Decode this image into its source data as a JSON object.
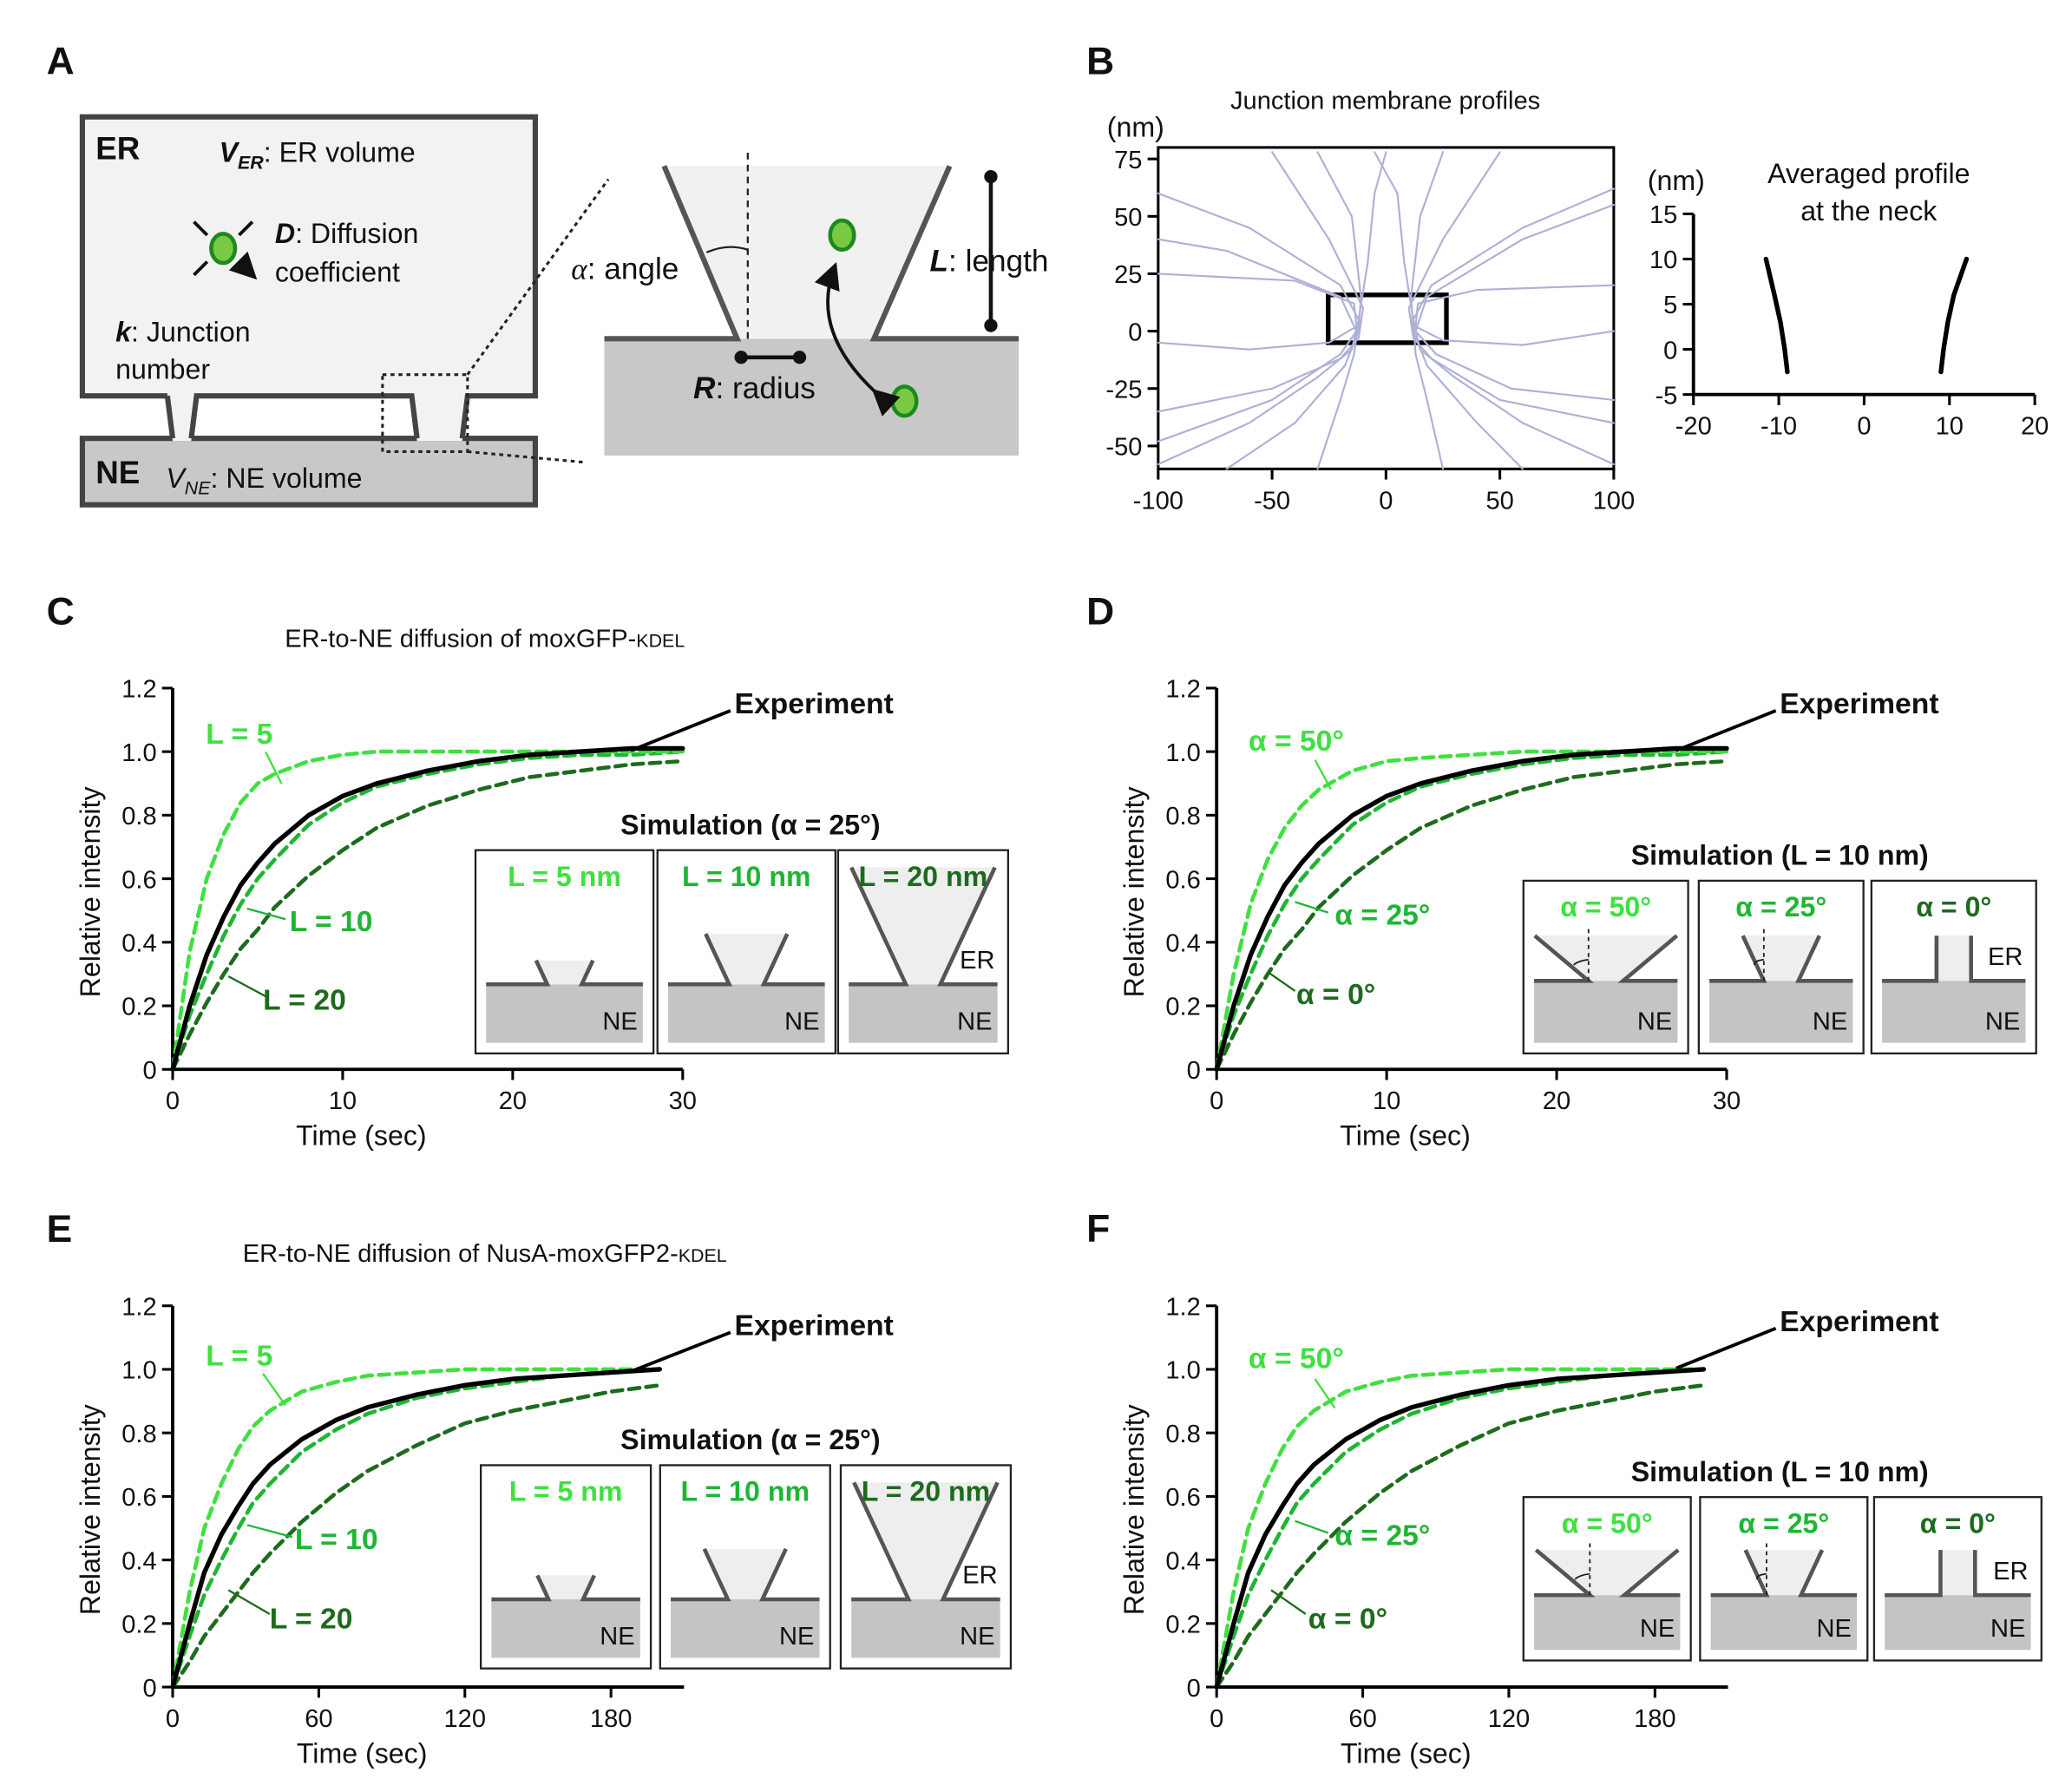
{
  "panel_labels": [
    "A",
    "B",
    "C",
    "D",
    "E",
    "F"
  ],
  "diagram_a": {
    "er_label": "ER",
    "ne_label": "NE",
    "v_er": {
      "symbol": "V",
      "sub": "ER",
      "text": ": ER volume"
    },
    "d": {
      "symbol": "D",
      "text": ": Diffusion",
      "text2": "coefficient"
    },
    "k": {
      "symbol": "k",
      "text": ": Junction",
      "text2": "number"
    },
    "v_ne": {
      "symbol": "V",
      "sub": "NE",
      "text": ": NE volume"
    },
    "angle": {
      "symbol": "α",
      "text": ": angle"
    },
    "length": {
      "symbol": "L",
      "text": ": length"
    },
    "radius": {
      "symbol": "R",
      "text": ": radius"
    }
  },
  "chart_data": [
    {
      "type": "line",
      "title": "Junction membrane profiles",
      "unit": "(nm)",
      "color": "#aeb0d6",
      "frame": true,
      "xlim": [
        -100,
        100
      ],
      "ylim": [
        -60,
        80
      ],
      "xticks": [
        -100,
        -50,
        0,
        50,
        100
      ],
      "yticks": [
        -50,
        -25,
        0,
        25,
        50,
        75
      ],
      "series": [
        {
          "x": [
            -100,
            -60,
            -30,
            -15,
            -12,
            -20,
            -60,
            -100
          ],
          "values": [
            -58,
            -40,
            -20,
            -8,
            5,
            20,
            45,
            60
          ]
        },
        {
          "x": [
            -100,
            -50,
            -20,
            -12,
            -10,
            -25,
            -50
          ],
          "values": [
            -35,
            -25,
            -12,
            -3,
            10,
            40,
            78
          ]
        },
        {
          "x": [
            -70,
            -40,
            -18,
            -12,
            -11,
            -15,
            -30
          ],
          "values": [
            -60,
            -40,
            -15,
            0,
            15,
            50,
            78
          ]
        },
        {
          "x": [
            -100,
            -60,
            -25,
            -13,
            -14,
            -40,
            -100
          ],
          "values": [
            -5,
            -8,
            -5,
            2,
            12,
            22,
            25
          ]
        },
        {
          "x": [
            -30,
            -20,
            -14,
            -12,
            -8,
            -5,
            0
          ],
          "values": [
            -60,
            -30,
            -10,
            5,
            30,
            60,
            78
          ]
        },
        {
          "x": [
            -100,
            -50,
            -20,
            -13,
            -20,
            -70,
            -100
          ],
          "values": [
            -48,
            -30,
            -10,
            0,
            15,
            35,
            40
          ]
        },
        {
          "x": [
            100,
            60,
            30,
            15,
            12,
            20,
            60,
            100
          ],
          "values": [
            -58,
            -40,
            -20,
            -8,
            5,
            20,
            45,
            62
          ]
        },
        {
          "x": [
            100,
            50,
            20,
            12,
            10,
            25,
            50
          ],
          "values": [
            -40,
            -30,
            -12,
            -3,
            10,
            40,
            78
          ]
        },
        {
          "x": [
            60,
            40,
            18,
            12,
            11,
            15,
            25
          ],
          "values": [
            -60,
            -40,
            -15,
            0,
            15,
            50,
            78
          ]
        },
        {
          "x": [
            100,
            60,
            25,
            13,
            14,
            40,
            100
          ],
          "values": [
            0,
            -6,
            -4,
            2,
            12,
            18,
            20
          ]
        },
        {
          "x": [
            25,
            18,
            13,
            12,
            8,
            5,
            -5
          ],
          "values": [
            -60,
            -30,
            -10,
            5,
            30,
            60,
            78
          ]
        },
        {
          "x": [
            100,
            55,
            22,
            13,
            18,
            60,
            100
          ],
          "values": [
            -30,
            -25,
            -10,
            0,
            15,
            40,
            55
          ]
        }
      ]
    },
    {
      "type": "line",
      "title": [
        "Averaged profile",
        "at the neck"
      ],
      "unit": "(nm)",
      "color": "#000000",
      "xlim": [
        -20,
        20
      ],
      "ylim": [
        -5,
        15
      ],
      "xticks": [
        -20,
        -10,
        0,
        10,
        20
      ],
      "yticks": [
        -5,
        0,
        5,
        10,
        15
      ],
      "series": [
        {
          "x": [
            -9,
            -9.3,
            -9.8,
            -10.5,
            -11.5
          ],
          "values": [
            -2.5,
            0,
            3,
            6,
            10
          ]
        },
        {
          "x": [
            9,
            9.3,
            9.8,
            10.5,
            12
          ],
          "values": [
            -2.5,
            0,
            3,
            6,
            10
          ]
        }
      ]
    },
    {
      "type": "line",
      "title": "ER-to-NE diffusion of moxGFP-",
      "title_suffix": "KDEL",
      "xlabel": "Time (sec)",
      "ylabel": "Relative intensity",
      "xlim": [
        0,
        30
      ],
      "ylim": [
        0,
        1.2
      ],
      "xticks": [
        0,
        10,
        20,
        30
      ],
      "yticks": [
        0,
        0.2,
        0.4,
        0.6,
        0.8,
        {
          "value": 1,
          "label": "1.0"
        },
        1.2
      ],
      "x": [
        0,
        1,
        2,
        3,
        4,
        5,
        6,
        8,
        10,
        12,
        15,
        18,
        21,
        24,
        27,
        30
      ],
      "series": [
        {
          "name": "Experiment",
          "color": "#000000",
          "style": "solid",
          "values": [
            0,
            0.2,
            0.36,
            0.48,
            0.58,
            0.65,
            0.71,
            0.8,
            0.86,
            0.9,
            0.94,
            0.97,
            0.99,
            1,
            1.01,
            1.01
          ]
        },
        {
          "name": "L = 5",
          "color": "#3fe03f",
          "style": "dashed",
          "values": [
            0,
            0.37,
            0.6,
            0.74,
            0.84,
            0.9,
            0.93,
            0.97,
            0.99,
            1,
            1,
            1,
            1,
            1,
            1,
            1
          ]
        },
        {
          "name": "L = 10",
          "color": "#1fb534",
          "style": "dashed",
          "values": [
            0,
            0.17,
            0.3,
            0.42,
            0.52,
            0.6,
            0.66,
            0.77,
            0.84,
            0.89,
            0.93,
            0.96,
            0.98,
            0.99,
            0.99,
            1
          ]
        },
        {
          "name": "L = 20",
          "color": "#1d6b1d",
          "style": "dashed",
          "values": [
            0,
            0.11,
            0.21,
            0.3,
            0.38,
            0.44,
            0.51,
            0.61,
            0.69,
            0.76,
            0.83,
            0.88,
            0.92,
            0.94,
            0.96,
            0.97
          ]
        }
      ],
      "inset": {
        "title": "Simulation (α = 25°)",
        "labels": [
          "L = 5 nm",
          "L = 10 nm",
          "L = 20 nm"
        ],
        "ne_label": "NE",
        "er_label": "ER"
      }
    },
    {
      "type": "line",
      "xlabel": "Time (sec)",
      "ylabel": "Relative intensity",
      "xlim": [
        0,
        30
      ],
      "ylim": [
        0,
        1.2
      ],
      "xticks": [
        0,
        10,
        20,
        30
      ],
      "yticks": [
        0,
        0.2,
        0.4,
        0.6,
        0.8,
        {
          "value": 1,
          "label": "1.0"
        },
        1.2
      ],
      "x": [
        0,
        1,
        2,
        3,
        4,
        5,
        6,
        8,
        10,
        12,
        15,
        18,
        21,
        24,
        27,
        30
      ],
      "series": [
        {
          "name": "Experiment",
          "color": "#000000",
          "style": "solid",
          "values": [
            0,
            0.2,
            0.36,
            0.48,
            0.58,
            0.65,
            0.71,
            0.8,
            0.86,
            0.9,
            0.94,
            0.97,
            0.99,
            1,
            1.01,
            1.01
          ]
        },
        {
          "name": "α = 50°",
          "color": "#3fe03f",
          "style": "dashed",
          "values": [
            0,
            0.3,
            0.52,
            0.66,
            0.76,
            0.83,
            0.88,
            0.94,
            0.97,
            0.98,
            0.99,
            1,
            1,
            1,
            1,
            1
          ]
        },
        {
          "name": "α = 25°",
          "color": "#1fb534",
          "style": "dashed",
          "values": [
            0,
            0.17,
            0.3,
            0.42,
            0.52,
            0.6,
            0.66,
            0.77,
            0.84,
            0.89,
            0.93,
            0.96,
            0.98,
            0.99,
            0.99,
            1
          ]
        },
        {
          "name": "α = 0°",
          "color": "#1d6b1d",
          "style": "dashed",
          "values": [
            0,
            0.11,
            0.21,
            0.3,
            0.38,
            0.44,
            0.51,
            0.61,
            0.69,
            0.76,
            0.83,
            0.88,
            0.92,
            0.94,
            0.96,
            0.97
          ]
        }
      ],
      "inset": {
        "title": "Simulation (L = 10 nm)",
        "labels": [
          "α = 50°",
          "α = 25°",
          "α = 0°"
        ],
        "ne_label": "NE",
        "er_label": "ER"
      }
    },
    {
      "type": "line",
      "title": "ER-to-NE diffusion of NusA-moxGFP2-",
      "title_suffix": "KDEL",
      "xlabel": "Time (sec)",
      "ylabel": "Relative intensity",
      "xlim": [
        0,
        210
      ],
      "ylim": [
        0,
        1.2
      ],
      "xticks": [
        0,
        60,
        120,
        180
      ],
      "yticks": [
        0,
        0.2,
        0.4,
        0.6,
        0.8,
        {
          "value": 1,
          "label": "1.0"
        },
        1.2
      ],
      "x": [
        0,
        7,
        13,
        20,
        27,
        33,
        40,
        53,
        67,
        80,
        100,
        120,
        140,
        160,
        180,
        200
      ],
      "series": [
        {
          "name": "Experiment",
          "color": "#000000",
          "style": "solid",
          "values": [
            0,
            0.2,
            0.36,
            0.48,
            0.57,
            0.64,
            0.7,
            0.78,
            0.84,
            0.88,
            0.92,
            0.95,
            0.97,
            0.98,
            0.99,
            1
          ]
        },
        {
          "name": "L = 5",
          "color": "#3fe03f",
          "style": "dashed",
          "values": [
            0,
            0.3,
            0.5,
            0.64,
            0.75,
            0.82,
            0.87,
            0.93,
            0.96,
            0.98,
            0.99,
            1,
            1,
            1,
            1,
            1
          ]
        },
        {
          "name": "L = 10",
          "color": "#1fb534",
          "style": "dashed",
          "values": [
            0,
            0.16,
            0.29,
            0.4,
            0.5,
            0.58,
            0.64,
            0.74,
            0.81,
            0.86,
            0.91,
            0.94,
            0.96,
            0.98,
            0.99,
            1
          ]
        },
        {
          "name": "L = 20",
          "color": "#1d6b1d",
          "style": "dashed",
          "values": [
            0,
            0.08,
            0.16,
            0.23,
            0.3,
            0.36,
            0.42,
            0.52,
            0.61,
            0.68,
            0.76,
            0.83,
            0.87,
            0.9,
            0.93,
            0.95
          ]
        }
      ],
      "inset": {
        "title": "Simulation (α = 25°)",
        "labels": [
          "L = 5 nm",
          "L = 10 nm",
          "L = 20 nm"
        ],
        "ne_label": "NE",
        "er_label": "ER"
      }
    },
    {
      "type": "line",
      "xlabel": "Time (sec)",
      "ylabel": "Relative intensity",
      "xlim": [
        0,
        210
      ],
      "ylim": [
        0,
        1.2
      ],
      "xticks": [
        0,
        60,
        120,
        180
      ],
      "yticks": [
        0,
        0.2,
        0.4,
        0.6,
        0.8,
        {
          "value": 1,
          "label": "1.0"
        },
        1.2
      ],
      "x": [
        0,
        7,
        13,
        20,
        27,
        33,
        40,
        53,
        67,
        80,
        100,
        120,
        140,
        160,
        180,
        200
      ],
      "series": [
        {
          "name": "Experiment",
          "color": "#000000",
          "style": "solid",
          "values": [
            0,
            0.2,
            0.36,
            0.48,
            0.57,
            0.64,
            0.7,
            0.78,
            0.84,
            0.88,
            0.92,
            0.95,
            0.97,
            0.98,
            0.99,
            1
          ]
        },
        {
          "name": "α = 50°",
          "color": "#3fe03f",
          "style": "dashed",
          "values": [
            0,
            0.3,
            0.5,
            0.64,
            0.75,
            0.82,
            0.87,
            0.93,
            0.96,
            0.98,
            0.99,
            1,
            1,
            1,
            1,
            1
          ]
        },
        {
          "name": "α = 25°",
          "color": "#1fb534",
          "style": "dashed",
          "values": [
            0,
            0.16,
            0.29,
            0.4,
            0.5,
            0.58,
            0.64,
            0.74,
            0.81,
            0.86,
            0.91,
            0.94,
            0.96,
            0.98,
            0.99,
            1
          ]
        },
        {
          "name": "α = 0°",
          "color": "#1d6b1d",
          "style": "dashed",
          "values": [
            0,
            0.08,
            0.16,
            0.23,
            0.3,
            0.36,
            0.42,
            0.52,
            0.61,
            0.68,
            0.76,
            0.83,
            0.87,
            0.9,
            0.93,
            0.95
          ]
        }
      ],
      "inset": {
        "title": "Simulation (L = 10 nm)",
        "labels": [
          "α = 50°",
          "α = 25°",
          "α = 0°"
        ],
        "ne_label": "NE",
        "er_label": "ER"
      }
    }
  ]
}
